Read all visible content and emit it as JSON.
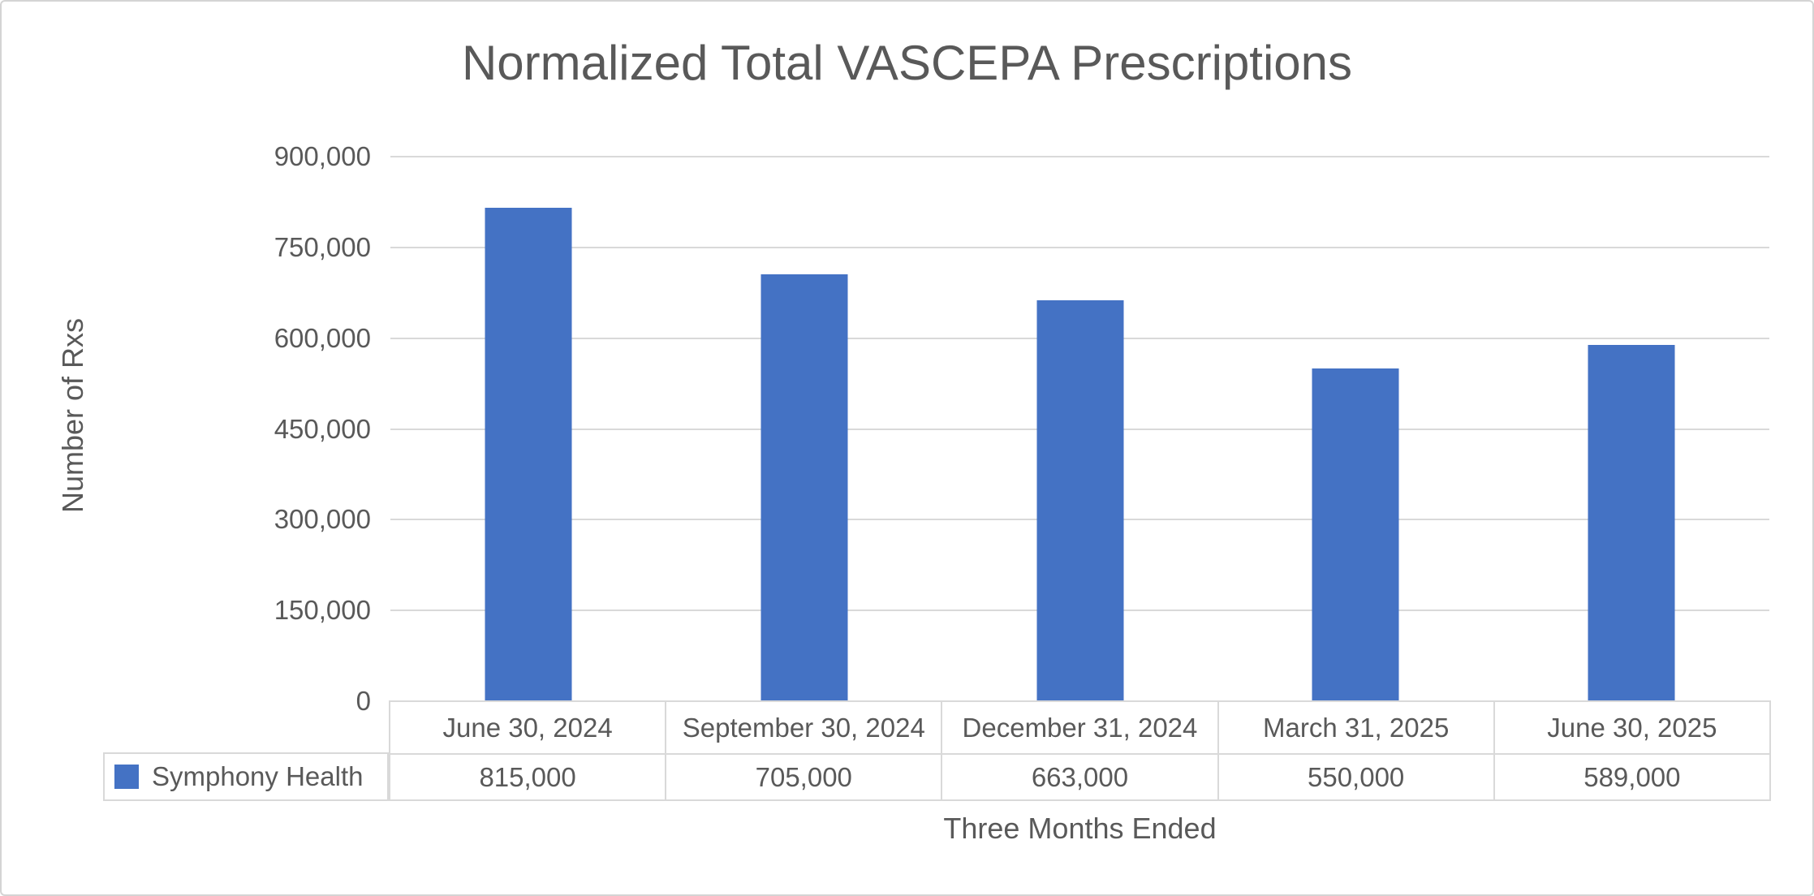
{
  "title": "Normalized Total VASCEPA Prescriptions",
  "axes": {
    "y_title": "Number of Rxs",
    "x_title": "Three Months Ended"
  },
  "legend": {
    "series_label": "Symphony Health",
    "marker_color": "#4472C4"
  },
  "chart_data": {
    "type": "bar",
    "title": "Normalized Total VASCEPA Prescriptions",
    "xlabel": "Three Months Ended",
    "ylabel": "Number of Rxs",
    "categories": [
      "June 30, 2024",
      "September 30, 2024",
      "December 31, 2024",
      "March 31, 2025",
      "June 30, 2025"
    ],
    "series": [
      {
        "name": "Symphony Health",
        "color": "#4472C4",
        "values": [
          815000,
          705000,
          663000,
          550000,
          589000
        ]
      }
    ],
    "value_labels": [
      "815,000",
      "705,000",
      "663,000",
      "550,000",
      "589,000"
    ],
    "ylim": [
      0,
      900000
    ],
    "yticks": [
      0,
      150000,
      300000,
      450000,
      600000,
      750000,
      900000
    ],
    "ytick_labels": [
      "0",
      "150,000",
      "300,000",
      "450,000",
      "600,000",
      "750,000",
      "900,000"
    ],
    "grid": true,
    "legend_position": "bottom-left-of-data-table",
    "data_table_shown": true
  },
  "colors": {
    "bar": "#4472C4",
    "text": "#595959",
    "gridline": "#D9D9D9",
    "table_border": "#D9D9D9",
    "canvas_border": "#D4D4D4",
    "background": "#FFFFFF"
  }
}
